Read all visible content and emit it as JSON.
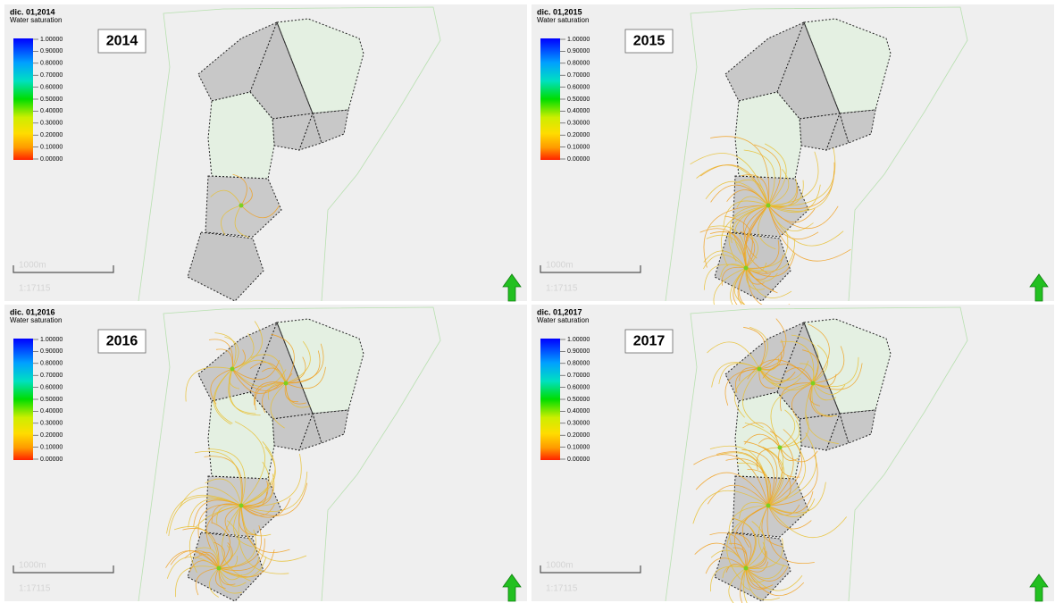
{
  "legend": {
    "title": "Water saturation",
    "ticks": [
      "1.00000",
      "0.90000",
      "0.80000",
      "0.70000",
      "0.60000",
      "0.50000",
      "0.40000",
      "0.30000",
      "0.20000",
      "0.10000",
      "0.00000"
    ]
  },
  "scale": {
    "distance": "1000m",
    "ratio": "1:17115"
  },
  "panels": [
    {
      "date": "dic. 01,2014",
      "year": "2014"
    },
    {
      "date": "dic. 01,2015",
      "year": "2015"
    },
    {
      "date": "dic. 01,2016",
      "year": "2016"
    },
    {
      "date": "dic. 01,2017",
      "year": "2017"
    }
  ]
}
